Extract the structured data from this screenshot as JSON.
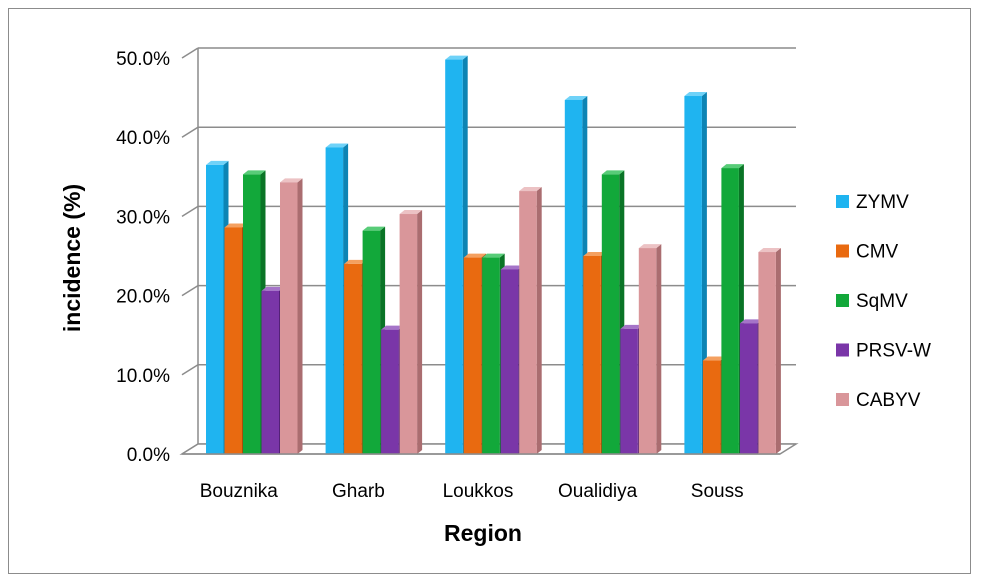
{
  "chart_data": {
    "type": "bar",
    "categories": [
      "Bouznika",
      "Gharb",
      "Loukkos",
      "Oualidiya",
      "Souss"
    ],
    "series": [
      {
        "name": "ZYMV",
        "values": [
          36.5,
          38.7,
          49.8,
          44.7,
          45.2
        ],
        "color": "#1fb4f0",
        "side": "#0d84b4",
        "top": "#6fd2f8"
      },
      {
        "name": "CMV",
        "values": [
          28.6,
          24.0,
          24.8,
          25.0,
          11.8
        ],
        "color": "#e96a10",
        "side": "#ad4c08",
        "top": "#f4a060"
      },
      {
        "name": "SqMV",
        "values": [
          35.3,
          28.2,
          24.8,
          35.3,
          36.1
        ],
        "color": "#12a83a",
        "side": "#0a7426",
        "top": "#58cc78"
      },
      {
        "name": "PRSV-W",
        "values": [
          20.6,
          15.7,
          23.3,
          15.8,
          16.5
        ],
        "color": "#7a36a8",
        "side": "#542178",
        "top": "#a574c8"
      },
      {
        "name": "CABYV",
        "values": [
          34.3,
          30.3,
          33.2,
          26.0,
          25.5
        ],
        "color": "#d9969a",
        "side": "#aa6d70",
        "top": "#ecc2c4"
      }
    ],
    "xlabel": "Region",
    "ylabel": "incidence (%)",
    "ylim": [
      0,
      50
    ],
    "yticks": [
      "0.0%",
      "10.0%",
      "20.0%",
      "30.0%",
      "40.0%",
      "50.0%"
    ],
    "grid": true,
    "legend": "right"
  }
}
